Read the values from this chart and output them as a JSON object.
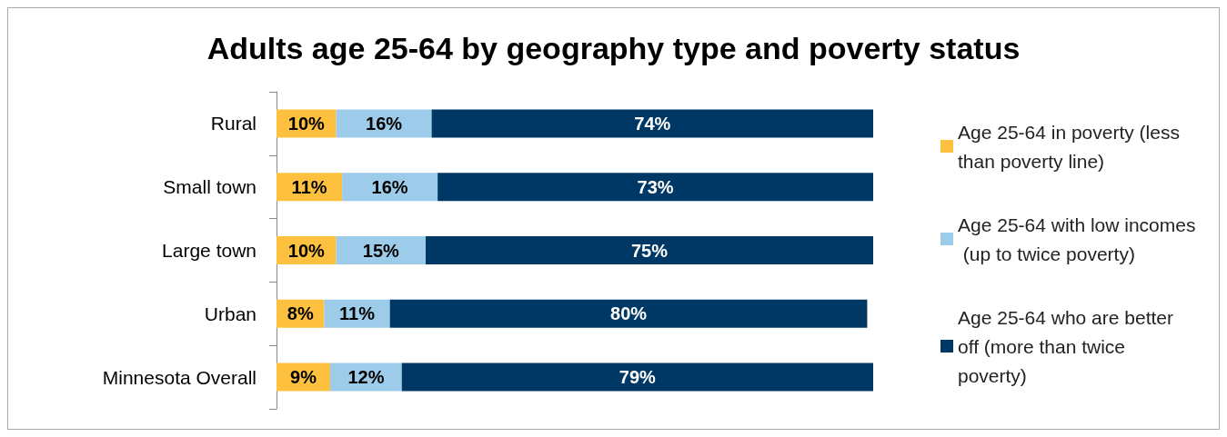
{
  "chart_data": {
    "type": "bar",
    "orientation": "horizontal",
    "stacked": true,
    "title": "Adults age 25-64 by geography type and poverty status",
    "categories": [
      "Rural",
      "Small town",
      "Large town",
      "Urban",
      "Minnesota Overall"
    ],
    "series": [
      {
        "name": "Age 25-64 in poverty (less than poverty line)",
        "color": "#fdc13f",
        "values": [
          10,
          11,
          10,
          8,
          9
        ],
        "value_labels": [
          "10%",
          "11%",
          "10%",
          "8%",
          "9%"
        ]
      },
      {
        "name": "Age 25-64 with low incomes (up to twice poverty)",
        "color": "#9dcbea",
        "values": [
          16,
          16,
          15,
          11,
          12
        ],
        "value_labels": [
          "16%",
          "16%",
          "15%",
          "11%",
          "12%"
        ]
      },
      {
        "name": "Age 25-64 who are better off (more than twice poverty)",
        "color": "#003865",
        "values": [
          74,
          73,
          75,
          80,
          79
        ],
        "value_labels": [
          "74%",
          "73%",
          "75%",
          "80%",
          "79%"
        ]
      }
    ],
    "tick_labels": "y",
    "legend": "right",
    "grid": false
  }
}
